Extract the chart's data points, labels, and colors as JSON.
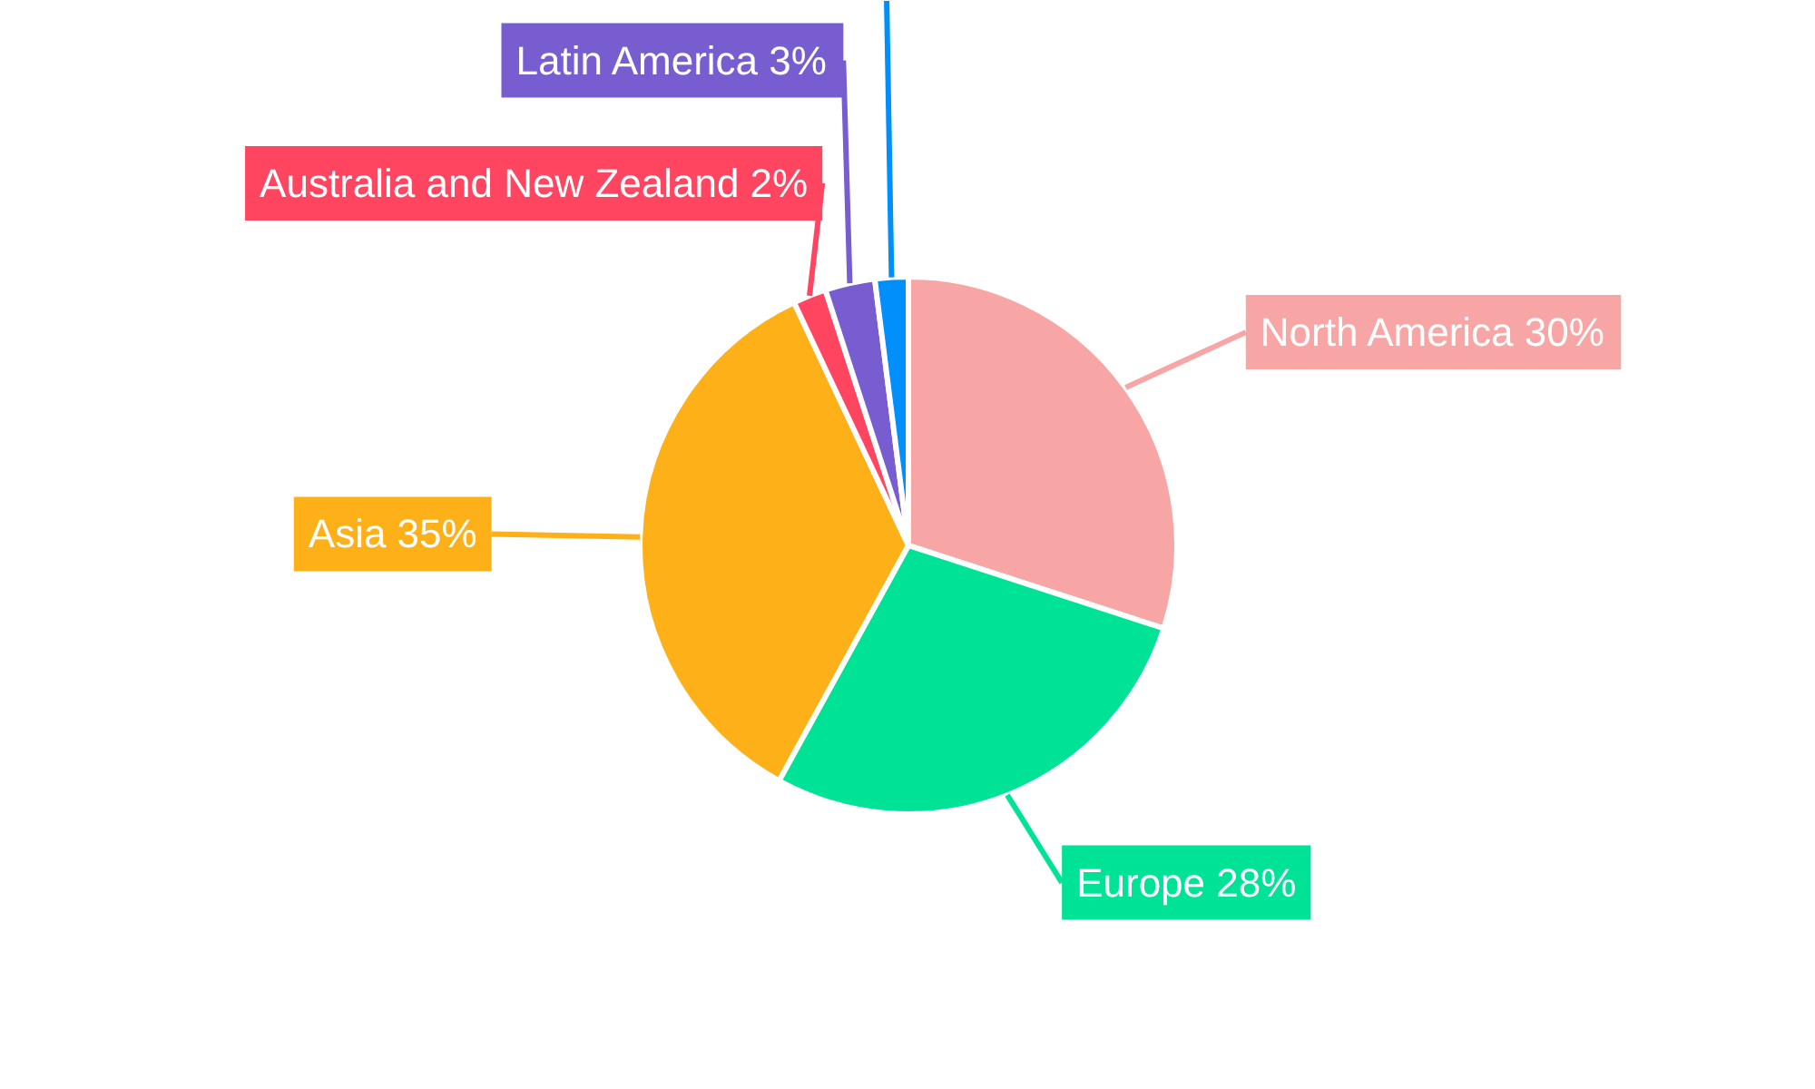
{
  "chart_data": {
    "type": "pie",
    "categories": [
      "North America",
      "Europe",
      "Asia",
      "Australia and New Zealand",
      "Latin America",
      null
    ],
    "values": [
      30,
      28,
      35,
      2,
      3,
      2
    ],
    "colors": [
      "#f8a5a5",
      "#00e396",
      "#feb019",
      "#ff4560",
      "#775dd0",
      "#008ffb"
    ],
    "value_labels": [
      "30%",
      "28%",
      "35%",
      "2%",
      "3%",
      null
    ]
  }
}
